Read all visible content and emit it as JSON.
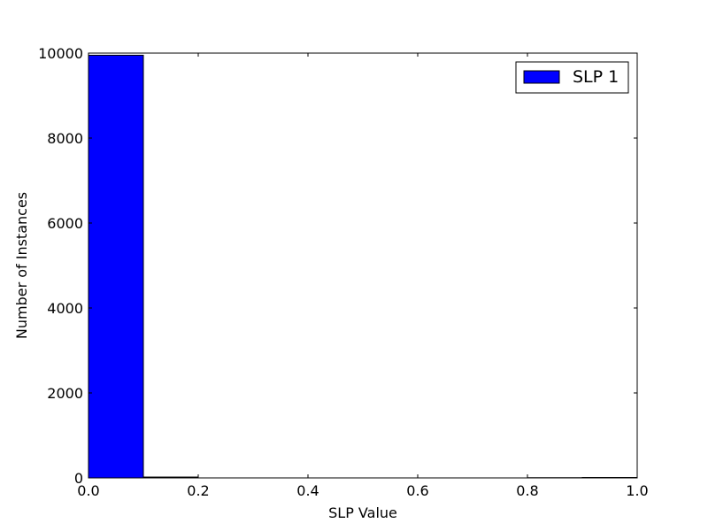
{
  "chart_data": {
    "type": "bar",
    "title": "",
    "xlabel": "SLP Value",
    "ylabel": "Number of Instances",
    "xlim": [
      0.0,
      1.0
    ],
    "ylim": [
      0,
      10000
    ],
    "xticks": [
      "0.0",
      "0.2",
      "0.4",
      "0.6",
      "0.8",
      "1.0"
    ],
    "yticks": [
      "0",
      "2000",
      "4000",
      "6000",
      "8000",
      "10000"
    ],
    "bin_edges": [
      0.0,
      0.1,
      0.2,
      0.3,
      0.4,
      0.5,
      0.6,
      0.7,
      0.8,
      0.9,
      1.0
    ],
    "series": [
      {
        "name": "SLP 1",
        "color": "#0000ff",
        "values": [
          9950,
          20,
          0,
          0,
          0,
          0,
          0,
          0,
          5,
          10
        ]
      }
    ],
    "legend": {
      "position": "top-right",
      "entries": [
        "SLP 1"
      ]
    },
    "grid": false
  }
}
